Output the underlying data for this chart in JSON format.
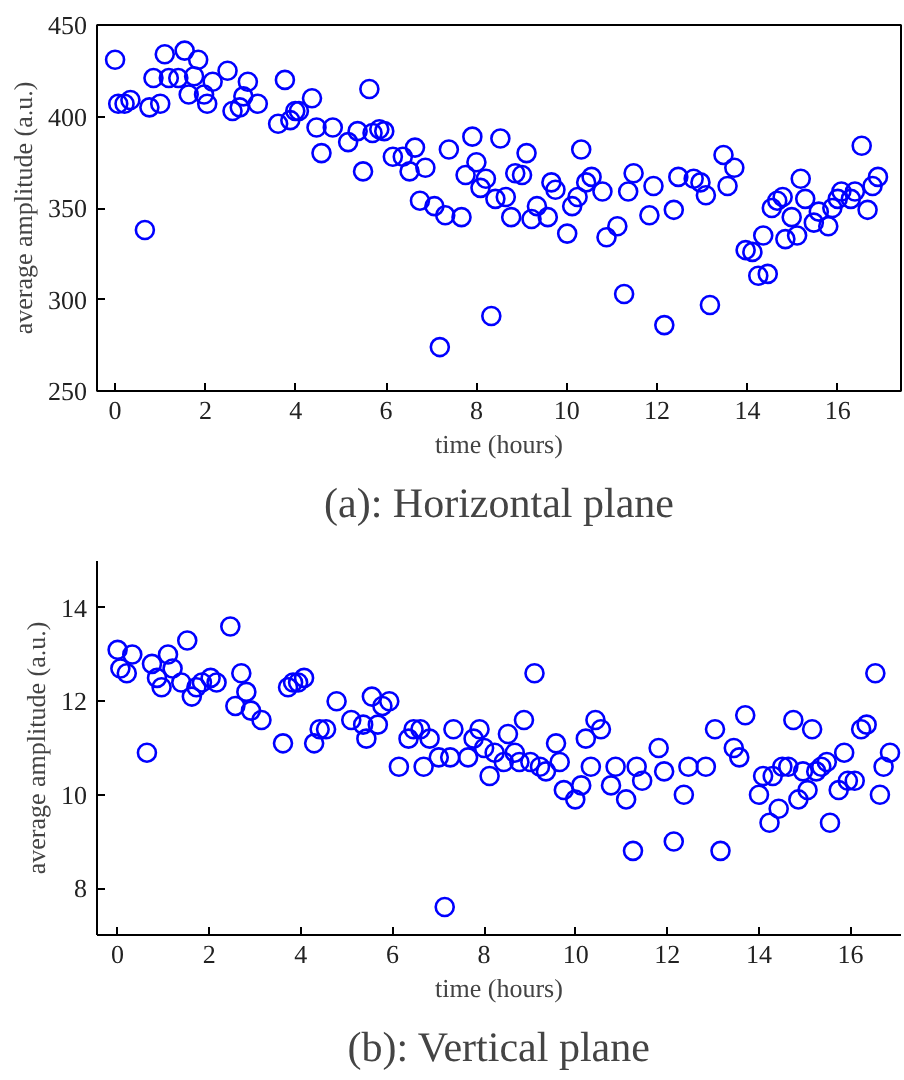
{
  "chart_data": [
    {
      "type": "scatter",
      "title": "(a): Horizontal plane",
      "xlabel": "time (hours)",
      "ylabel": "average amplitude (a.u.)",
      "marker": "circle",
      "xlim": [
        -0.4,
        17.4
      ],
      "ylim": [
        250,
        450
      ],
      "xticks": [
        0,
        2,
        4,
        6,
        8,
        10,
        12,
        14,
        16
      ],
      "yticks": [
        250,
        300,
        350,
        400,
        450
      ],
      "series": [
        {
          "color": "#0000ff",
          "x": [
            0,
            0.07,
            0.21,
            0.34,
            0.66,
            0.76,
            0.85,
            1.0,
            1.1,
            1.19,
            1.4,
            1.54,
            1.63,
            1.75,
            1.84,
            1.97,
            2.04,
            2.16,
            2.49,
            2.6,
            2.76,
            2.84,
            2.94,
            3.16,
            3.61,
            3.76,
            3.88,
            3.99,
            4.07,
            4.36,
            4.46,
            4.57,
            4.82,
            5.16,
            5.37,
            5.49,
            5.63,
            5.7,
            5.85,
            5.96,
            6.15,
            6.37,
            6.52,
            6.64,
            6.75,
            6.87,
            7.07,
            7.19,
            7.31,
            7.39,
            7.67,
            7.76,
            7.91,
            8.0,
            8.09,
            8.21,
            8.33,
            8.42,
            8.53,
            8.65,
            8.77,
            8.86,
            9.01,
            9.11,
            9.22,
            9.34,
            9.58,
            9.66,
            9.75,
            10.01,
            10.12,
            10.24,
            10.32,
            10.43,
            10.55,
            10.79,
            10.88,
            11.12,
            11.27,
            11.36,
            11.48,
            11.83,
            11.92,
            12.16,
            12.37,
            12.47,
            12.81,
            12.96,
            13.08,
            13.17,
            13.47,
            13.56,
            13.71,
            13.96,
            14.11,
            14.24,
            14.35,
            14.45,
            14.54,
            14.66,
            14.78,
            14.84,
            14.98,
            15.1,
            15.18,
            15.28,
            15.47,
            15.58,
            15.79,
            15.88,
            16.0,
            16.08,
            16.29,
            16.38,
            16.53,
            16.66,
            16.77,
            16.89
          ],
          "values": [
            431,
            407,
            407,
            409,
            338,
            405,
            421,
            407,
            434,
            421,
            421,
            436,
            412,
            422,
            431,
            412,
            407,
            419,
            425,
            403,
            405,
            411,
            419,
            407,
            396,
            420,
            398,
            403,
            403,
            410,
            394,
            380,
            394,
            386,
            392,
            370,
            415,
            391,
            393,
            392,
            378,
            378,
            370,
            383,
            354,
            372,
            351,
            274,
            346,
            382,
            345,
            368,
            389,
            375,
            361,
            366,
            291,
            355,
            388,
            356,
            345,
            369,
            368,
            380,
            344,
            351,
            345,
            364,
            360,
            336,
            351,
            356,
            382,
            364,
            367,
            359,
            334,
            340,
            303,
            359,
            369,
            346,
            362,
            286,
            349,
            367,
            366,
            364,
            357,
            297,
            379,
            362,
            372,
            327,
            326,
            313,
            335,
            314,
            350,
            354,
            356,
            333,
            345,
            335,
            366,
            355,
            342,
            348,
            340,
            350,
            355,
            359,
            355,
            359,
            384,
            349,
            362,
            367
          ]
        }
      ]
    },
    {
      "type": "scatter",
      "title": "(b): Vertical plane",
      "xlabel": "time (hours)",
      "ylabel": "average amplitude (a.u.)",
      "marker": "circle",
      "xlim": [
        -0.45,
        17.1
      ],
      "ylim": [
        7,
        15
      ],
      "xticks": [
        0,
        2,
        4,
        6,
        8,
        10,
        12,
        14,
        16
      ],
      "yticks": [
        8,
        10,
        12,
        14
      ],
      "series": [
        {
          "color": "#0000ff",
          "x": [
            0,
            0.06,
            0.2,
            0.32,
            0.64,
            0.75,
            0.86,
            0.96,
            1.1,
            1.2,
            1.39,
            1.52,
            1.62,
            1.72,
            1.84,
            2.03,
            2.16,
            2.46,
            2.57,
            2.7,
            2.81,
            2.91,
            3.14,
            3.61,
            3.72,
            3.83,
            3.94,
            4.07,
            4.29,
            4.41,
            4.55,
            4.78,
            5.1,
            5.36,
            5.43,
            5.55,
            5.68,
            5.78,
            5.93,
            6.14,
            6.35,
            6.46,
            6.61,
            6.68,
            6.81,
            7.01,
            7.14,
            7.26,
            7.33,
            7.65,
            7.77,
            7.9,
            8.0,
            8.12,
            8.23,
            8.43,
            8.52,
            8.67,
            8.77,
            8.87,
            9.01,
            9.1,
            9.22,
            9.35,
            9.57,
            9.65,
            9.74,
            9.99,
            10.12,
            10.22,
            10.33,
            10.43,
            10.55,
            10.77,
            10.87,
            11.1,
            11.25,
            11.33,
            11.45,
            11.81,
            11.93,
            12.14,
            12.36,
            12.46,
            12.84,
            13.04,
            13.16,
            13.45,
            13.57,
            13.7,
            14.0,
            14.09,
            14.23,
            14.3,
            14.43,
            14.51,
            14.64,
            14.75,
            14.86,
            14.96,
            15.06,
            15.16,
            15.25,
            15.36,
            15.48,
            15.55,
            15.74,
            15.86,
            15.94,
            16.09,
            16.23,
            16.35,
            16.54,
            16.64,
            16.72,
            16.86
          ],
          "values": [
            13.1,
            12.7,
            12.6,
            13.0,
            10.9,
            12.8,
            12.5,
            12.3,
            13.0,
            12.7,
            12.4,
            13.3,
            12.1,
            12.3,
            12.4,
            12.5,
            12.4,
            13.6,
            11.9,
            12.6,
            12.2,
            11.8,
            11.6,
            11.1,
            12.3,
            12.4,
            12.4,
            12.5,
            11.1,
            11.4,
            11.4,
            12.0,
            11.6,
            11.5,
            11.2,
            12.1,
            11.5,
            11.9,
            12.0,
            10.6,
            11.2,
            11.4,
            11.4,
            10.6,
            11.2,
            10.8,
            7.6,
            10.8,
            11.4,
            10.8,
            11.2,
            11.4,
            11.0,
            10.4,
            10.9,
            10.7,
            11.3,
            10.9,
            10.7,
            11.6,
            10.7,
            12.6,
            10.6,
            10.5,
            11.1,
            10.7,
            10.1,
            9.9,
            10.2,
            11.2,
            10.6,
            11.6,
            11.4,
            10.2,
            10.6,
            9.9,
            8.8,
            10.6,
            10.3,
            11.0,
            10.5,
            9.0,
            10.0,
            10.6,
            10.6,
            11.4,
            8.8,
            11.0,
            10.8,
            11.7,
            10.0,
            10.4,
            9.4,
            10.4,
            9.7,
            10.6,
            10.6,
            11.6,
            9.9,
            10.5,
            10.1,
            11.4,
            10.5,
            10.6,
            10.7,
            9.4,
            10.1,
            10.9,
            10.3,
            10.3,
            11.4,
            11.5,
            12.6,
            10.0,
            10.6,
            10.9
          ]
        }
      ]
    }
  ]
}
